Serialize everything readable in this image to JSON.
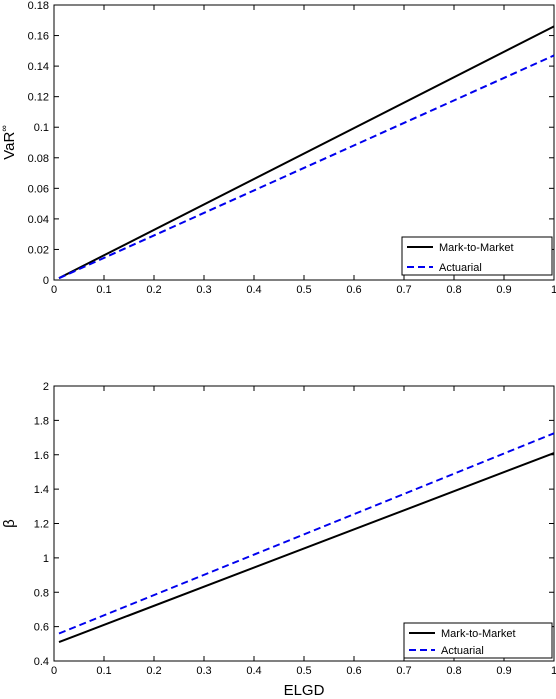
{
  "chart_data": [
    {
      "type": "line",
      "title": "",
      "xlabel": "",
      "ylabel": "VaR",
      "ylabel_superscript": "∞",
      "xlim": [
        0,
        1
      ],
      "ylim": [
        0,
        0.18
      ],
      "xticks": [
        "0",
        "0.1",
        "0.2",
        "0.3",
        "0.4",
        "0.5",
        "0.6",
        "0.7",
        "0.8",
        "0.9",
        "1"
      ],
      "yticks": [
        "0",
        "0.02",
        "0.04",
        "0.06",
        "0.08",
        "0.1",
        "0.12",
        "0.14",
        "0.16",
        "0.18"
      ],
      "grid": false,
      "legend": "bottom-right",
      "series": [
        {
          "name": "Mark-to-Market",
          "color": "#000000",
          "style": "solid",
          "x": [
            0.01,
            1
          ],
          "y": [
            0.0012,
            0.166
          ]
        },
        {
          "name": "Actuarial",
          "color": "#0000ee",
          "style": "dashed",
          "x": [
            0.01,
            1
          ],
          "y": [
            0.0012,
            0.147
          ]
        }
      ]
    },
    {
      "type": "line",
      "title": "",
      "xlabel": "ELGD",
      "ylabel": "β",
      "xlim": [
        0,
        1
      ],
      "ylim": [
        0.4,
        2
      ],
      "xticks": [
        "0",
        "0.1",
        "0.2",
        "0.3",
        "0.4",
        "0.5",
        "0.6",
        "0.7",
        "0.8",
        "0.9",
        "1"
      ],
      "yticks": [
        "0.4",
        "0.6",
        "0.8",
        "1",
        "1.2",
        "1.4",
        "1.6",
        "1.8",
        "2"
      ],
      "grid": false,
      "legend": "bottom-right",
      "series": [
        {
          "name": "Mark-to-Market",
          "color": "#000000",
          "style": "solid",
          "x": [
            0.01,
            1
          ],
          "y": [
            0.51,
            1.61
          ]
        },
        {
          "name": "Actuarial",
          "color": "#0000ee",
          "style": "dashed",
          "x": [
            0.01,
            1
          ],
          "y": [
            0.56,
            1.725
          ]
        }
      ]
    }
  ]
}
